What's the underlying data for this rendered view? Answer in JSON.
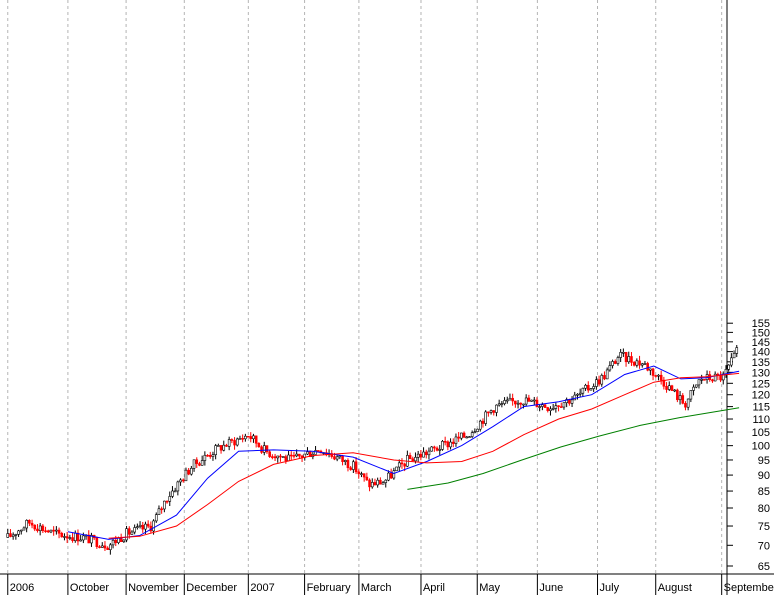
{
  "chart_data": {
    "type": "candlestick",
    "scale": "log",
    "ylim": [
      63,
      157
    ],
    "y_ticks": [
      65,
      70,
      75,
      80,
      85,
      90,
      95,
      100,
      105,
      110,
      115,
      120,
      125,
      130,
      135,
      140,
      145,
      150,
      155
    ],
    "x_labels": [
      "2006",
      "October",
      "November",
      "December",
      "2007",
      "February",
      "March",
      "April",
      "May",
      "June",
      "July",
      "August",
      "September"
    ],
    "x_label_dates": [
      "2006-09-01",
      "2006-10-02",
      "2006-11-01",
      "2006-12-01",
      "2007-01-03",
      "2007-02-01",
      "2007-03-01",
      "2007-04-02",
      "2007-05-01",
      "2007-06-01",
      "2007-07-02",
      "2007-08-01",
      "2007-09-04"
    ],
    "grid": true,
    "price_close_trend": [
      {
        "date": "2006-09-01",
        "value": 72
      },
      {
        "date": "2006-09-12",
        "value": 76
      },
      {
        "date": "2006-09-25",
        "value": 73
      },
      {
        "date": "2006-10-10",
        "value": 72
      },
      {
        "date": "2006-10-23",
        "value": 70
      },
      {
        "date": "2006-11-01",
        "value": 73
      },
      {
        "date": "2006-11-14",
        "value": 75
      },
      {
        "date": "2006-11-22",
        "value": 83
      },
      {
        "date": "2006-12-05",
        "value": 93
      },
      {
        "date": "2006-12-18",
        "value": 99
      },
      {
        "date": "2007-01-03",
        "value": 104
      },
      {
        "date": "2007-01-12",
        "value": 98
      },
      {
        "date": "2007-01-25",
        "value": 95
      },
      {
        "date": "2007-02-09",
        "value": 99
      },
      {
        "date": "2007-02-26",
        "value": 93
      },
      {
        "date": "2007-03-06",
        "value": 87
      },
      {
        "date": "2007-03-14",
        "value": 88
      },
      {
        "date": "2007-03-26",
        "value": 95
      },
      {
        "date": "2007-04-10",
        "value": 99
      },
      {
        "date": "2007-04-26",
        "value": 104
      },
      {
        "date": "2007-05-10",
        "value": 115
      },
      {
        "date": "2007-05-24",
        "value": 118
      },
      {
        "date": "2007-06-07",
        "value": 115
      },
      {
        "date": "2007-06-21",
        "value": 119
      },
      {
        "date": "2007-07-05",
        "value": 128
      },
      {
        "date": "2007-07-13",
        "value": 138
      },
      {
        "date": "2007-07-26",
        "value": 134
      },
      {
        "date": "2007-08-06",
        "value": 125
      },
      {
        "date": "2007-08-16",
        "value": 116
      },
      {
        "date": "2007-08-24",
        "value": 127
      },
      {
        "date": "2007-09-05",
        "value": 128
      },
      {
        "date": "2007-09-13",
        "value": 142
      }
    ],
    "series": [
      {
        "name": "",
        "color": "#0000ff",
        "points": [
          {
            "date": "2006-10-02",
            "value": 73.5
          },
          {
            "date": "2006-10-23",
            "value": 71.5
          },
          {
            "date": "2006-11-08",
            "value": 72.5
          },
          {
            "date": "2006-11-27",
            "value": 78
          },
          {
            "date": "2006-12-13",
            "value": 89
          },
          {
            "date": "2006-12-29",
            "value": 98
          },
          {
            "date": "2007-01-16",
            "value": 98.5
          },
          {
            "date": "2007-02-05",
            "value": 98
          },
          {
            "date": "2007-02-26",
            "value": 96
          },
          {
            "date": "2007-03-19",
            "value": 90.5
          },
          {
            "date": "2007-04-05",
            "value": 94.5
          },
          {
            "date": "2007-04-23",
            "value": 100
          },
          {
            "date": "2007-05-09",
            "value": 107
          },
          {
            "date": "2007-05-25",
            "value": 115
          },
          {
            "date": "2007-06-12",
            "value": 117
          },
          {
            "date": "2007-06-29",
            "value": 120
          },
          {
            "date": "2007-07-16",
            "value": 129
          },
          {
            "date": "2007-07-31",
            "value": 133
          },
          {
            "date": "2007-08-14",
            "value": 127
          },
          {
            "date": "2007-08-27",
            "value": 127.5
          },
          {
            "date": "2007-09-13",
            "value": 130.5
          }
        ]
      },
      {
        "name": "",
        "color": "#ff0000",
        "points": [
          {
            "date": "2006-10-23",
            "value": 71.8
          },
          {
            "date": "2006-11-08",
            "value": 72.3
          },
          {
            "date": "2006-11-27",
            "value": 75
          },
          {
            "date": "2006-12-13",
            "value": 81
          },
          {
            "date": "2006-12-29",
            "value": 88
          },
          {
            "date": "2007-01-16",
            "value": 93.5
          },
          {
            "date": "2007-02-05",
            "value": 96.5
          },
          {
            "date": "2007-02-26",
            "value": 97.5
          },
          {
            "date": "2007-03-19",
            "value": 95
          },
          {
            "date": "2007-04-05",
            "value": 94
          },
          {
            "date": "2007-04-23",
            "value": 94.5
          },
          {
            "date": "2007-05-09",
            "value": 98
          },
          {
            "date": "2007-05-25",
            "value": 104
          },
          {
            "date": "2007-06-12",
            "value": 110
          },
          {
            "date": "2007-06-29",
            "value": 114
          },
          {
            "date": "2007-07-16",
            "value": 120
          },
          {
            "date": "2007-07-31",
            "value": 125.5
          },
          {
            "date": "2007-08-14",
            "value": 127.5
          },
          {
            "date": "2007-08-27",
            "value": 128
          },
          {
            "date": "2007-09-13",
            "value": 129.5
          }
        ]
      },
      {
        "name": "",
        "color": "#008000",
        "points": [
          {
            "date": "2007-03-26",
            "value": 85.5
          },
          {
            "date": "2007-04-16",
            "value": 87.5
          },
          {
            "date": "2007-05-04",
            "value": 90.5
          },
          {
            "date": "2007-05-24",
            "value": 95
          },
          {
            "date": "2007-06-13",
            "value": 99.5
          },
          {
            "date": "2007-07-03",
            "value": 103.5
          },
          {
            "date": "2007-07-24",
            "value": 107.5
          },
          {
            "date": "2007-08-13",
            "value": 110.5
          },
          {
            "date": "2007-09-13",
            "value": 114.5
          }
        ]
      }
    ]
  }
}
